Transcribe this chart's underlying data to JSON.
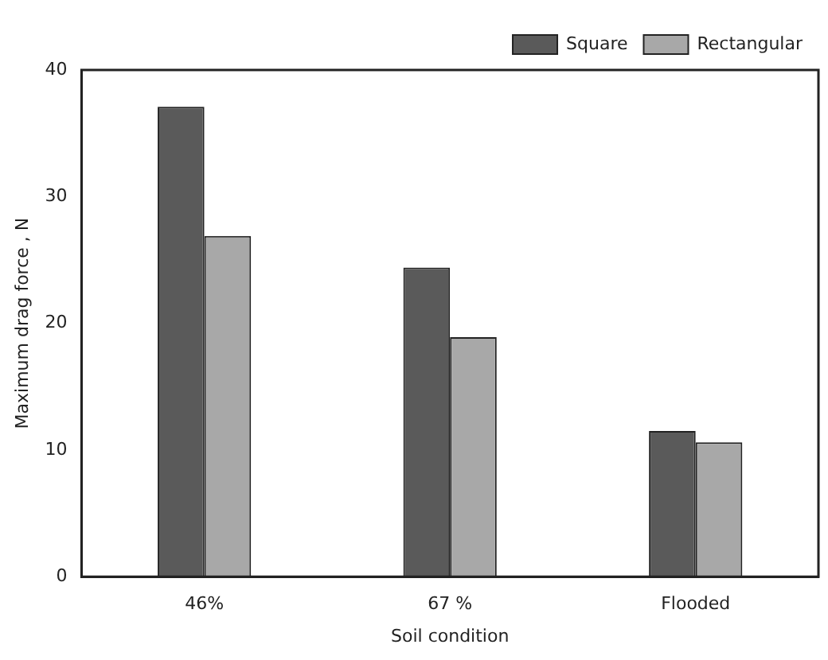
{
  "chart_data": {
    "type": "bar",
    "xlabel": "Soil condition",
    "ylabel": "Maximum drag force , N",
    "categories": [
      "46%",
      "67 %",
      "Flooded"
    ],
    "series": [
      {
        "name": "Square",
        "color": "#5a5a5a",
        "values": [
          37.1,
          24.4,
          11.5
        ]
      },
      {
        "name": "Rectangular",
        "color": "#a8a8a8",
        "values": [
          26.9,
          18.9,
          10.6
        ]
      }
    ],
    "ylim": [
      0,
      40
    ],
    "yticks": [
      0,
      10,
      20,
      30,
      40
    ],
    "grid": false,
    "legend": "top right"
  }
}
